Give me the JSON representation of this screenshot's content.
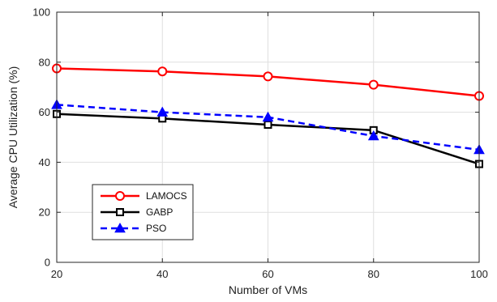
{
  "chart_data": {
    "type": "line",
    "title": "",
    "xlabel": "Number of VMs",
    "ylabel": "Average CPU Utilization (%)",
    "x": [
      20,
      40,
      60,
      80,
      100
    ],
    "xlim": [
      20,
      100
    ],
    "ylim": [
      0,
      100
    ],
    "x_ticks": [
      20,
      40,
      60,
      80,
      100
    ],
    "y_ticks": [
      0,
      20,
      40,
      60,
      80,
      100
    ],
    "grid": true,
    "legend_position": "bottom-left",
    "series": [
      {
        "name": "LAMOCS",
        "values": [
          77.5,
          76.3,
          74.3,
          71.0,
          66.5
        ],
        "color": "#ff0000",
        "marker": "circle",
        "line_style": "solid"
      },
      {
        "name": "GABP",
        "values": [
          59.3,
          57.5,
          55.0,
          52.8,
          39.3
        ],
        "color": "#000000",
        "marker": "square",
        "line_style": "solid"
      },
      {
        "name": "PSO",
        "values": [
          63.0,
          60.0,
          58.0,
          50.5,
          45.0
        ],
        "color": "#0000ff",
        "marker": "triangle",
        "line_style": "dashed"
      }
    ]
  }
}
